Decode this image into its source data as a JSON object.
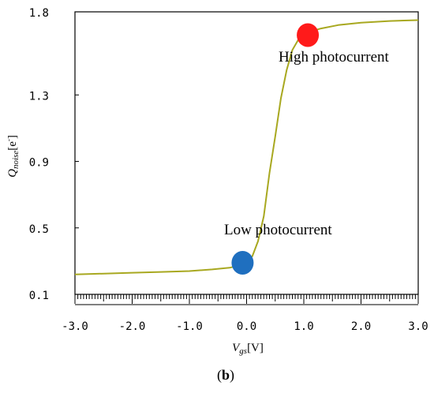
{
  "chart_data": {
    "type": "line",
    "title": "",
    "xlabel": {
      "main": "V",
      "sub": "gs",
      "unit": "[V]"
    },
    "ylabel": {
      "main": "Q",
      "sub": "noise",
      "unit": "[e",
      "sup": "-",
      "close": "]"
    },
    "xlim": [
      -3.0,
      3.0
    ],
    "ylim": [
      0.1,
      1.8
    ],
    "xticks": [
      -3.0,
      -2.0,
      -1.0,
      0.0,
      1.0,
      2.0,
      3.0
    ],
    "xtick_labels": [
      "-3.0",
      "-2.0",
      "-1.0",
      "0.0",
      "1.0",
      "2.0",
      "3.0"
    ],
    "yticks": [
      0.1,
      0.5,
      0.9,
      1.3,
      1.8
    ],
    "ytick_labels": [
      "0.1",
      "0.5",
      "0.9",
      "1.3",
      "1.8"
    ],
    "grid": false,
    "series": [
      {
        "color": "#a8a820",
        "x": [
          -3.0,
          -2.5,
          -2.0,
          -1.5,
          -1.0,
          -0.6,
          -0.3,
          -0.1,
          0.0,
          0.1,
          0.2,
          0.3,
          0.4,
          0.5,
          0.6,
          0.7,
          0.8,
          0.9,
          1.0,
          1.1,
          1.3,
          1.6,
          2.0,
          2.5,
          3.0
        ],
        "y": [
          0.22,
          0.225,
          0.23,
          0.235,
          0.24,
          0.25,
          0.26,
          0.275,
          0.3,
          0.33,
          0.42,
          0.57,
          0.83,
          1.05,
          1.28,
          1.45,
          1.57,
          1.63,
          1.66,
          1.68,
          1.7,
          1.72,
          1.735,
          1.745,
          1.75
        ]
      }
    ],
    "markers": [
      {
        "name": "high",
        "x": 1.07,
        "y": 1.66,
        "color": "#ff1a1a"
      },
      {
        "name": "low",
        "x": -0.07,
        "y": 0.29,
        "color": "#1f6fbf"
      }
    ],
    "annotations": {
      "high": "High photocurrent",
      "low": "Low photocurrent"
    },
    "caption": "b"
  }
}
